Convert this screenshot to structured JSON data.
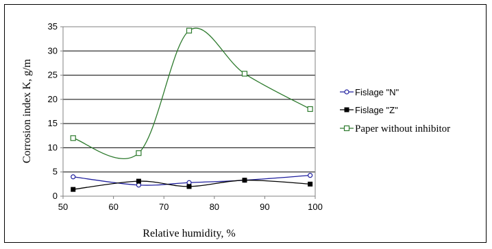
{
  "chart_data": {
    "type": "line",
    "xlabel": "Relative humidity, %",
    "ylabel": "Corrosion index K, g/m",
    "xlim": [
      50,
      100
    ],
    "ylim": [
      0,
      35
    ],
    "xticks": [
      50,
      60,
      70,
      80,
      90,
      100
    ],
    "yticks": [
      0,
      5,
      10,
      15,
      20,
      25,
      30,
      35
    ],
    "grid": "horizontal",
    "legend_position": "right",
    "series": [
      {
        "name": "Fislage \"N\"",
        "color": "#1f1f9e",
        "marker": "circle-open",
        "x": [
          52,
          65,
          75,
          86,
          99
        ],
        "y": [
          4.0,
          2.3,
          2.8,
          3.3,
          4.3
        ]
      },
      {
        "name": "Fislage \"Z\"",
        "color": "#000000",
        "marker": "square-filled",
        "x": [
          52,
          65,
          75,
          86,
          99
        ],
        "y": [
          1.4,
          3.1,
          2.0,
          3.3,
          2.5
        ]
      },
      {
        "name": "Paper without inhibitor",
        "color": "#2d7a2d",
        "marker": "square-open",
        "x": [
          52,
          65,
          75,
          86,
          99
        ],
        "y": [
          12.0,
          8.9,
          34.2,
          25.3,
          18.0
        ]
      }
    ]
  }
}
